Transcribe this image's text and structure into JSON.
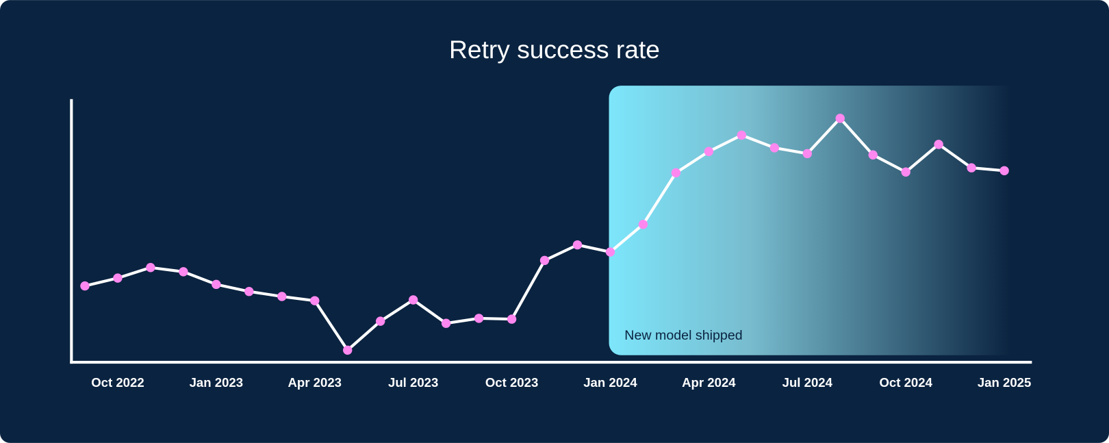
{
  "chart_data": {
    "type": "line",
    "title": "Retry success rate",
    "xlabel": "",
    "ylabel": "",
    "y_axis_labels_shown": false,
    "ylim": [
      0,
      100
    ],
    "grid": false,
    "x": [
      "Sep 2022",
      "Oct 2022",
      "Nov 2022",
      "Dec 2022",
      "Jan 2023",
      "Feb 2023",
      "Mar 2023",
      "Apr 2023",
      "May 2023",
      "Jun 2023",
      "Jul 2023",
      "Aug 2023",
      "Sep 2023",
      "Oct 2023",
      "Nov 2023",
      "Dec 2023",
      "Jan 2024",
      "Feb 2024",
      "Mar 2024",
      "Apr 2024",
      "May 2024",
      "Jun 2024",
      "Jul 2024",
      "Aug 2024",
      "Sep 2024",
      "Oct 2024",
      "Nov 2024",
      "Dec 2024",
      "Jan 2025"
    ],
    "tick_labels": [
      {
        "label": "Oct 2022",
        "index": 1
      },
      {
        "label": "Jan 2023",
        "index": 4
      },
      {
        "label": "Apr 2023",
        "index": 7
      },
      {
        "label": "Jul 2023",
        "index": 10
      },
      {
        "label": "Oct 2023",
        "index": 13
      },
      {
        "label": "Jan 2024",
        "index": 16
      },
      {
        "label": "Apr 2024",
        "index": 19
      },
      {
        "label": "Jul 2024",
        "index": 22
      },
      {
        "label": "Oct 2024",
        "index": 25
      },
      {
        "label": "Jan 2025",
        "index": 28
      }
    ],
    "series": [
      {
        "name": "Retry success rate",
        "values": [
          29.0,
          32.0,
          36.0,
          34.4,
          29.6,
          26.9,
          25.0,
          23.4,
          4.6,
          15.6,
          23.7,
          14.8,
          16.7,
          16.4,
          38.7,
          44.6,
          41.9,
          52.4,
          72.0,
          80.1,
          86.3,
          81.5,
          79.3,
          92.7,
          78.8,
          72.3,
          82.8,
          73.9,
          72.8
        ]
      }
    ],
    "annotations": [
      {
        "text": "New model shipped",
        "from_index": 16,
        "to_index": 29
      }
    ],
    "colors": {
      "background": "#0a2340",
      "line": "#ffffff",
      "marker": "#ff88f0",
      "highlight_start": "#7de6fb",
      "annotation_text": "#0a2340"
    }
  }
}
